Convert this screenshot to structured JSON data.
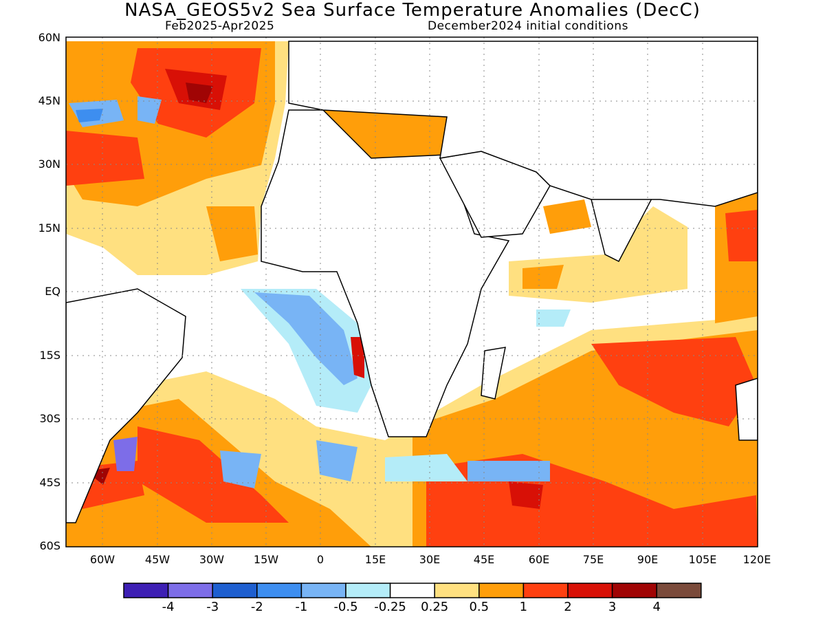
{
  "title": "NASA_GEOS5v2 Sea Surface Temperature Anomalies (DecC)",
  "subtitle_left": "Feb2025-Apr2025",
  "subtitle_right": "December2024 initial conditions",
  "lat_labels": [
    "60N",
    "45N",
    "30N",
    "15N",
    "EQ",
    "15S",
    "30S",
    "45S",
    "60S"
  ],
  "lon_labels": [
    "60W",
    "45W",
    "30W",
    "15W",
    "0",
    "15E",
    "30E",
    "45E",
    "60E",
    "75E",
    "90E",
    "105E",
    "120E"
  ],
  "colorbar": {
    "colors": [
      "#3d1fb4",
      "#7d6de8",
      "#1e5fd0",
      "#3d8ef0",
      "#78b4f5",
      "#b4ecf8",
      "#ffffff",
      "#ffe080",
      "#ff9e0a",
      "#ff4010",
      "#d81006",
      "#a00404",
      "#7a4a3a"
    ],
    "labels": [
      "-4",
      "-3",
      "-2",
      "-1",
      "-0.5",
      "-0.25",
      "0.25",
      "0.5",
      "1",
      "2",
      "3",
      "4"
    ]
  }
}
